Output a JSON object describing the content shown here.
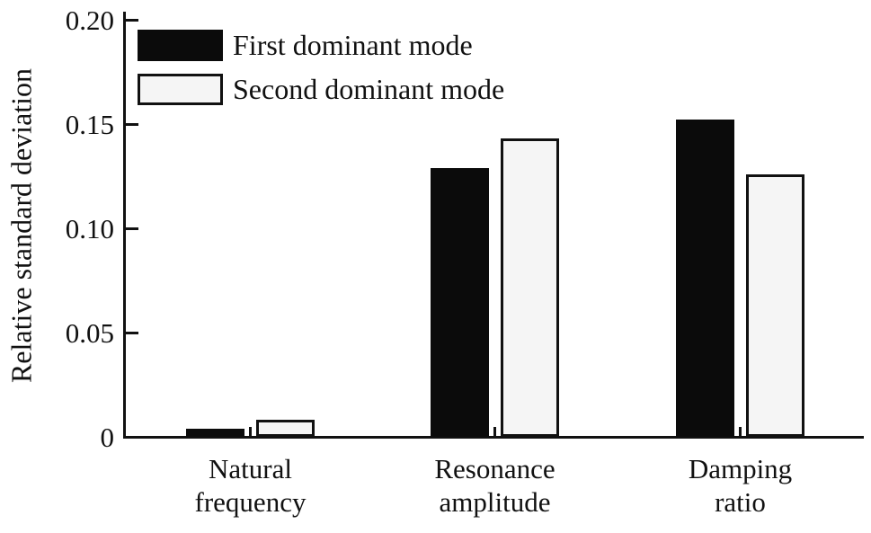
{
  "chart_data": {
    "type": "bar",
    "title": "",
    "ylabel": "Relative standard deviation",
    "xlabel": "",
    "categories": [
      "Natural frequency",
      "Resonance amplitude",
      "Damping ratio"
    ],
    "category_display": [
      "Natural\nfrequency",
      "Resonance\namplitude",
      "Damping\nratio"
    ],
    "series": [
      {
        "name": "First dominant mode",
        "values": [
          0.004,
          0.129,
          0.152
        ],
        "fill": "#0b0b0b",
        "outline": "#0b0b0b"
      },
      {
        "name": "Second dominant mode",
        "values": [
          0.008,
          0.143,
          0.126
        ],
        "fill": "#f5f5f5",
        "outline": "#111111"
      }
    ],
    "ylim": [
      0,
      0.2
    ],
    "yticks": [
      {
        "value": 0.2,
        "label": "0.20"
      },
      {
        "value": 0.15,
        "label": "0.15"
      },
      {
        "value": 0.1,
        "label": "0.10"
      },
      {
        "value": 0.05,
        "label": "0.05"
      },
      {
        "value": 0.0,
        "label": "0"
      }
    ],
    "grid": false,
    "legend_position": "top-left",
    "axis_color": "#111111",
    "background_color": "#ffffff"
  }
}
